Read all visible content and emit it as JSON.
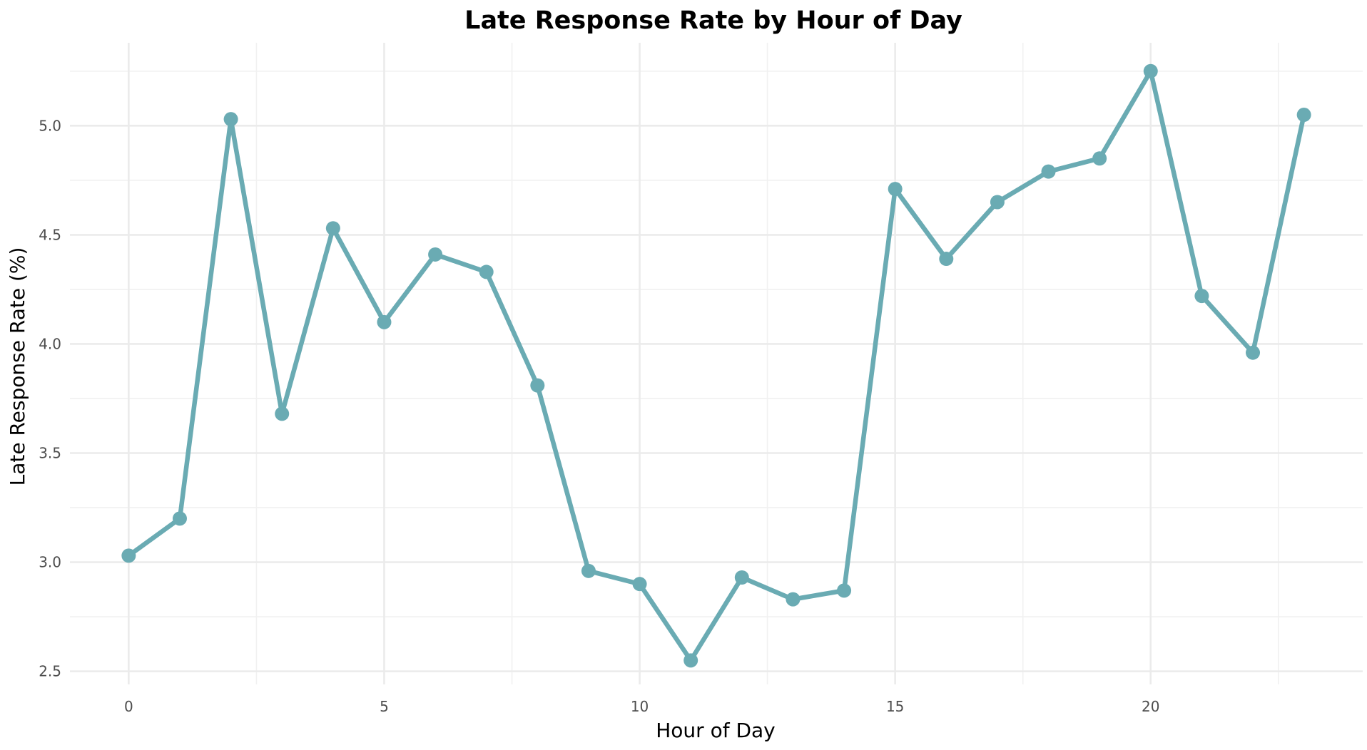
{
  "chart_data": {
    "type": "line",
    "title": "Late Response Rate by Hour of Day",
    "xlabel": "Hour of Day",
    "ylabel": "Late Response Rate (%)",
    "x": [
      0,
      1,
      2,
      3,
      4,
      5,
      6,
      7,
      8,
      9,
      10,
      11,
      12,
      13,
      14,
      15,
      16,
      17,
      18,
      19,
      20,
      21,
      22,
      23
    ],
    "series": [
      {
        "values": [
          3.03,
          3.2,
          5.03,
          3.68,
          4.53,
          4.1,
          4.41,
          4.33,
          3.81,
          2.96,
          2.9,
          2.55,
          2.93,
          2.83,
          2.87,
          4.71,
          4.39,
          4.65,
          4.79,
          4.85,
          5.25,
          4.22,
          3.96,
          5.05
        ],
        "color": "#6aabb3"
      }
    ],
    "xlim": [
      -1.15,
      24.15
    ],
    "ylim": [
      2.44,
      5.38
    ],
    "xticks": [
      0,
      5,
      10,
      15,
      20
    ],
    "xtick_labels": [
      "0",
      "5",
      "10",
      "15",
      "20"
    ],
    "yticks": [
      2.5,
      3.0,
      3.5,
      4.0,
      4.5,
      5.0
    ],
    "ytick_labels": [
      "2.5",
      "3.0",
      "3.5",
      "4.0",
      "4.5",
      "5.0"
    ],
    "grid": true,
    "legend": "none"
  }
}
